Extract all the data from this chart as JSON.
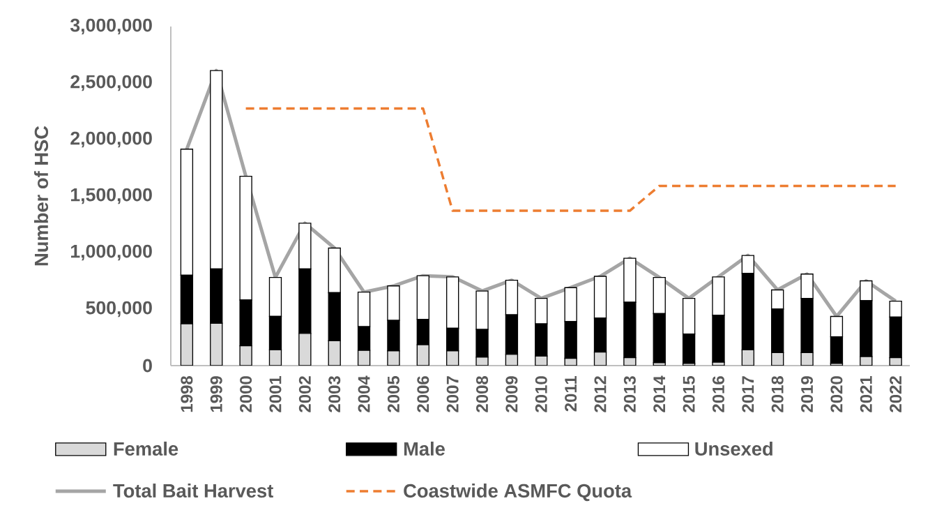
{
  "chart_data": {
    "type": "bar",
    "stacked": true,
    "ylabel": "Number of HSC",
    "categories": [
      "1998",
      "1999",
      "2000",
      "2001",
      "2002",
      "2003",
      "2004",
      "2005",
      "2006",
      "2007",
      "2008",
      "2009",
      "2010",
      "2011",
      "2012",
      "2013",
      "2014",
      "2015",
      "2016",
      "2017",
      "2018",
      "2019",
      "2020",
      "2021",
      "2022"
    ],
    "ylim": [
      0,
      3000000
    ],
    "yticks": [
      0,
      {
        "value": 500000,
        "label": "500,000"
      },
      {
        "value": 1000000,
        "label": "1,000,000"
      },
      {
        "value": 1500000,
        "label": "1,500,000"
      },
      {
        "value": 2000000,
        "label": "2,000,000"
      },
      {
        "value": 2500000,
        "label": "2,500,000"
      },
      {
        "value": 3000000,
        "label": "3,000,000"
      }
    ],
    "legend": "bottom",
    "series": [
      {
        "name": "Female",
        "color": "#d9d9d9",
        "values": [
          370000,
          375000,
          175000,
          140000,
          285000,
          220000,
          135000,
          130000,
          185000,
          130000,
          75000,
          100000,
          85000,
          65000,
          120000,
          70000,
          25000,
          20000,
          30000,
          140000,
          115000,
          115000,
          20000,
          80000,
          70000
        ]
      },
      {
        "name": "Male",
        "color": "#000000",
        "values": [
          430000,
          480000,
          405000,
          295000,
          570000,
          425000,
          210000,
          270000,
          225000,
          200000,
          245000,
          350000,
          285000,
          325000,
          300000,
          490000,
          435000,
          260000,
          415000,
          675000,
          385000,
          480000,
          235000,
          495000,
          360000
        ]
      },
      {
        "name": "Unsexed",
        "color": "#ffffff",
        "values": [
          1115000,
          1755000,
          1095000,
          345000,
          405000,
          395000,
          305000,
          305000,
          385000,
          455000,
          340000,
          305000,
          225000,
          300000,
          370000,
          390000,
          320000,
          315000,
          340000,
          160000,
          170000,
          215000,
          180000,
          175000,
          140000
        ]
      },
      {
        "name": "Total Bait Harvest",
        "type": "line",
        "color": "#a5a5a5",
        "values": [
          1915000,
          2610000,
          1675000,
          780000,
          1260000,
          1040000,
          650000,
          705000,
          795000,
          785000,
          660000,
          755000,
          595000,
          690000,
          790000,
          950000,
          780000,
          595000,
          785000,
          975000,
          670000,
          810000,
          435000,
          750000,
          570000
        ]
      },
      {
        "name": "Coastwide ASMFC Quota",
        "type": "line",
        "color": "#ed7d31",
        "line_style": "dashed",
        "values": [
          null,
          null,
          2275000,
          2275000,
          2275000,
          2275000,
          2275000,
          2275000,
          2275000,
          1370000,
          1370000,
          1370000,
          1370000,
          1370000,
          1370000,
          1370000,
          1590000,
          1590000,
          1590000,
          1590000,
          1590000,
          1590000,
          1590000,
          1590000,
          1590000
        ]
      }
    ]
  }
}
